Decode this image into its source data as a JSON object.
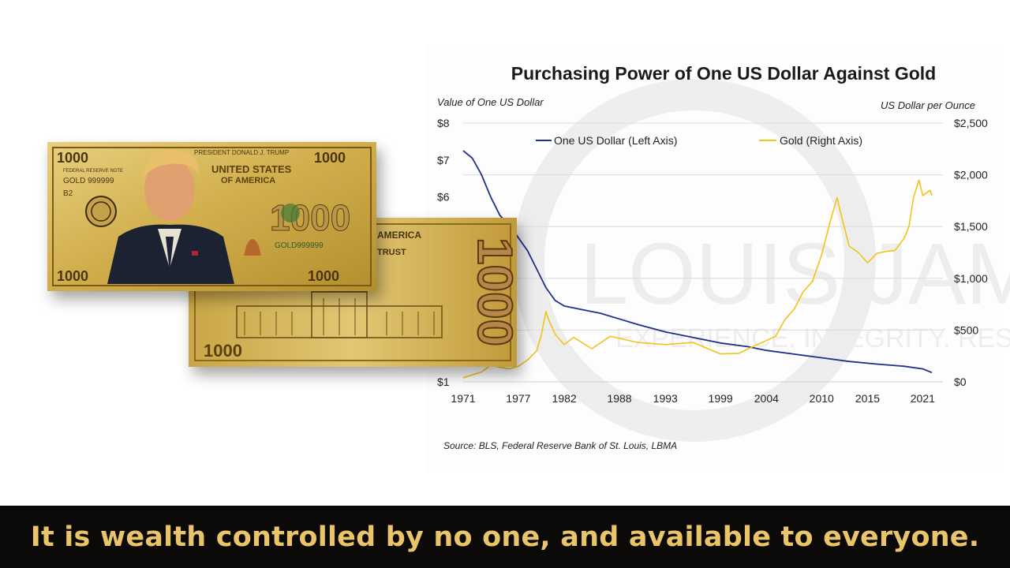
{
  "colors": {
    "dollar_line": "#1f2f8a",
    "gold_line": "#f0c419",
    "grid": "#dcdcdc",
    "banner_bg": "#0c0a09",
    "banner_text": "#e9c46a",
    "note_gold": "#d4ad48",
    "note_dark": "#3a2a0a"
  },
  "bills": {
    "front": {
      "corner_denomination": "1000",
      "issuer_line": "PRESIDENT DONALD J. TRUMP",
      "country_line1": "UNITED STATES",
      "country_line2": "OF AMERICA",
      "serial_left": "GOLD 999999",
      "serial_right": "GOLD999999",
      "series_code": "B2",
      "reserve_label": "FEDERAL RESERVE NOTE",
      "large_center": "1000"
    },
    "back": {
      "top_text": "AMERICA",
      "motto_fragment": "TRUST",
      "vertical_denomination": "1000",
      "corner_denomination": "1000"
    }
  },
  "watermark": {
    "text": "LOUIS JAMES",
    "tagline": "EXPERIENCE. INTEGRITY. RESULTS."
  },
  "chart_data": {
    "type": "line",
    "title": "Purchasing Power of One US Dollar Against Gold",
    "ylabel_left": "Value of One US Dollar",
    "ylabel_right": "US Dollar per Ounce",
    "source": "Source: BLS, Federal Reserve Bank of St. Louis, LBMA",
    "xlim": [
      1971,
      2022
    ],
    "xticks": [
      1971,
      1977,
      1982,
      1988,
      1993,
      1999,
      2004,
      2010,
      2015,
      2021
    ],
    "y_left": {
      "range": [
        1,
        8
      ],
      "ticks": [
        1,
        6,
        7,
        8
      ],
      "tick_labels": [
        "$1",
        "$6",
        "$7",
        "$8"
      ]
    },
    "y_right": {
      "range": [
        0,
        2500
      ],
      "ticks": [
        0,
        500,
        1000,
        1500,
        2000,
        2500
      ],
      "tick_labels": [
        "$0",
        "$500",
        "$1,000",
        "$1,500",
        "$2,000",
        "$2,500"
      ]
    },
    "grid": true,
    "legend": {
      "placement": "top",
      "entries": [
        "One US Dollar (Left Axis)",
        "Gold (Right Axis)"
      ]
    },
    "series": [
      {
        "name": "One US Dollar (Left Axis)",
        "axis": "left",
        "x": [
          1971,
          1972,
          1973,
          1974,
          1975,
          1976,
          1977,
          1978,
          1979,
          1980,
          1981,
          1982,
          1984,
          1986,
          1988,
          1990,
          1993,
          1996,
          1999,
          2002,
          2004,
          2007,
          2010,
          2013,
          2016,
          2019,
          2021,
          2022
        ],
        "values": [
          7.25,
          7.05,
          6.6,
          6.0,
          5.5,
          5.25,
          4.9,
          4.55,
          4.05,
          3.55,
          3.2,
          3.05,
          2.95,
          2.85,
          2.7,
          2.55,
          2.35,
          2.2,
          2.05,
          1.95,
          1.85,
          1.75,
          1.65,
          1.55,
          1.48,
          1.42,
          1.35,
          1.25
        ]
      },
      {
        "name": "Gold (Right Axis)",
        "axis": "right",
        "x": [
          1971,
          1973,
          1974,
          1975,
          1976,
          1977,
          1978,
          1979,
          1979.5,
          1980,
          1980.3,
          1981,
          1982,
          1983,
          1985,
          1987,
          1988,
          1990,
          1993,
          1996,
          1999,
          2001,
          2003,
          2005,
          2006,
          2007,
          2008,
          2009,
          2010,
          2011,
          2011.7,
          2012,
          2013,
          2014,
          2015,
          2016,
          2017,
          2018,
          2019,
          2019.5,
          2020,
          2020.6,
          2021,
          2021.8,
          2022
        ],
        "values": [
          40,
          95,
          160,
          140,
          125,
          150,
          210,
          300,
          450,
          680,
          600,
          460,
          360,
          430,
          320,
          440,
          420,
          380,
          360,
          380,
          270,
          275,
          360,
          440,
          600,
          700,
          870,
          970,
          1225,
          1570,
          1780,
          1660,
          1310,
          1250,
          1150,
          1240,
          1260,
          1270,
          1390,
          1500,
          1780,
          1950,
          1800,
          1850,
          1800
        ]
      }
    ]
  },
  "caption": "It is wealth controlled by no one, and available to everyone."
}
